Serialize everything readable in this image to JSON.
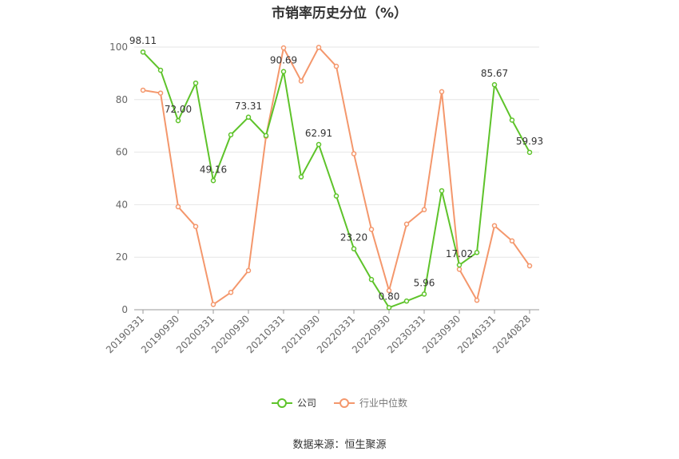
{
  "chart_data": {
    "type": "line",
    "title": "市销率历史分位（%）",
    "ylim": [
      0,
      100
    ],
    "yticks": [
      0,
      20,
      40,
      60,
      80,
      100
    ],
    "grid": true,
    "legend_position": "bottom-center",
    "x": [
      "20190331",
      "20190630",
      "20190930",
      "20191231",
      "20200331",
      "20200630",
      "20200930",
      "20201231",
      "20210331",
      "20210630",
      "20210930",
      "20211231",
      "20220331",
      "20220630",
      "20220930",
      "20221231",
      "20230331",
      "20230630",
      "20230930",
      "20231231",
      "20240331",
      "20240630",
      "20240828"
    ],
    "x_tick_labels": [
      "20190331",
      "20190930",
      "20200331",
      "20200930",
      "20210331",
      "20210930",
      "20220331",
      "20220930",
      "20230331",
      "20230930",
      "20240331",
      "20240828"
    ],
    "series": [
      {
        "name": "公司",
        "color": "#5ec32a",
        "values": [
          98.11,
          91.2,
          72.0,
          86.3,
          49.16,
          66.6,
          73.31,
          66.3,
          90.69,
          50.6,
          62.91,
          43.3,
          23.2,
          11.5,
          0.8,
          3.3,
          5.96,
          45.3,
          17.02,
          21.8,
          85.67,
          72.2,
          59.93
        ],
        "labels": [
          "98.11",
          null,
          "72.00",
          null,
          "49.16",
          null,
          "73.31",
          null,
          "90.69",
          null,
          "62.91",
          null,
          "23.20",
          null,
          "0.80",
          null,
          "5.96",
          null,
          "17.02",
          null,
          "85.67",
          null,
          "59.93"
        ]
      },
      {
        "name": "行业中位数",
        "color": "#f4976c",
        "values": [
          83.6,
          82.5,
          39.2,
          31.7,
          2.0,
          6.6,
          14.9,
          66.0,
          99.7,
          87.1,
          99.9,
          92.7,
          59.4,
          30.6,
          7.3,
          32.6,
          38.1,
          83.0,
          15.4,
          3.6,
          32.0,
          26.2,
          16.7
        ]
      }
    ]
  },
  "legend": {
    "company": "公司",
    "industry_median": "行业中位数"
  },
  "source": "数据来源：恒生聚源"
}
